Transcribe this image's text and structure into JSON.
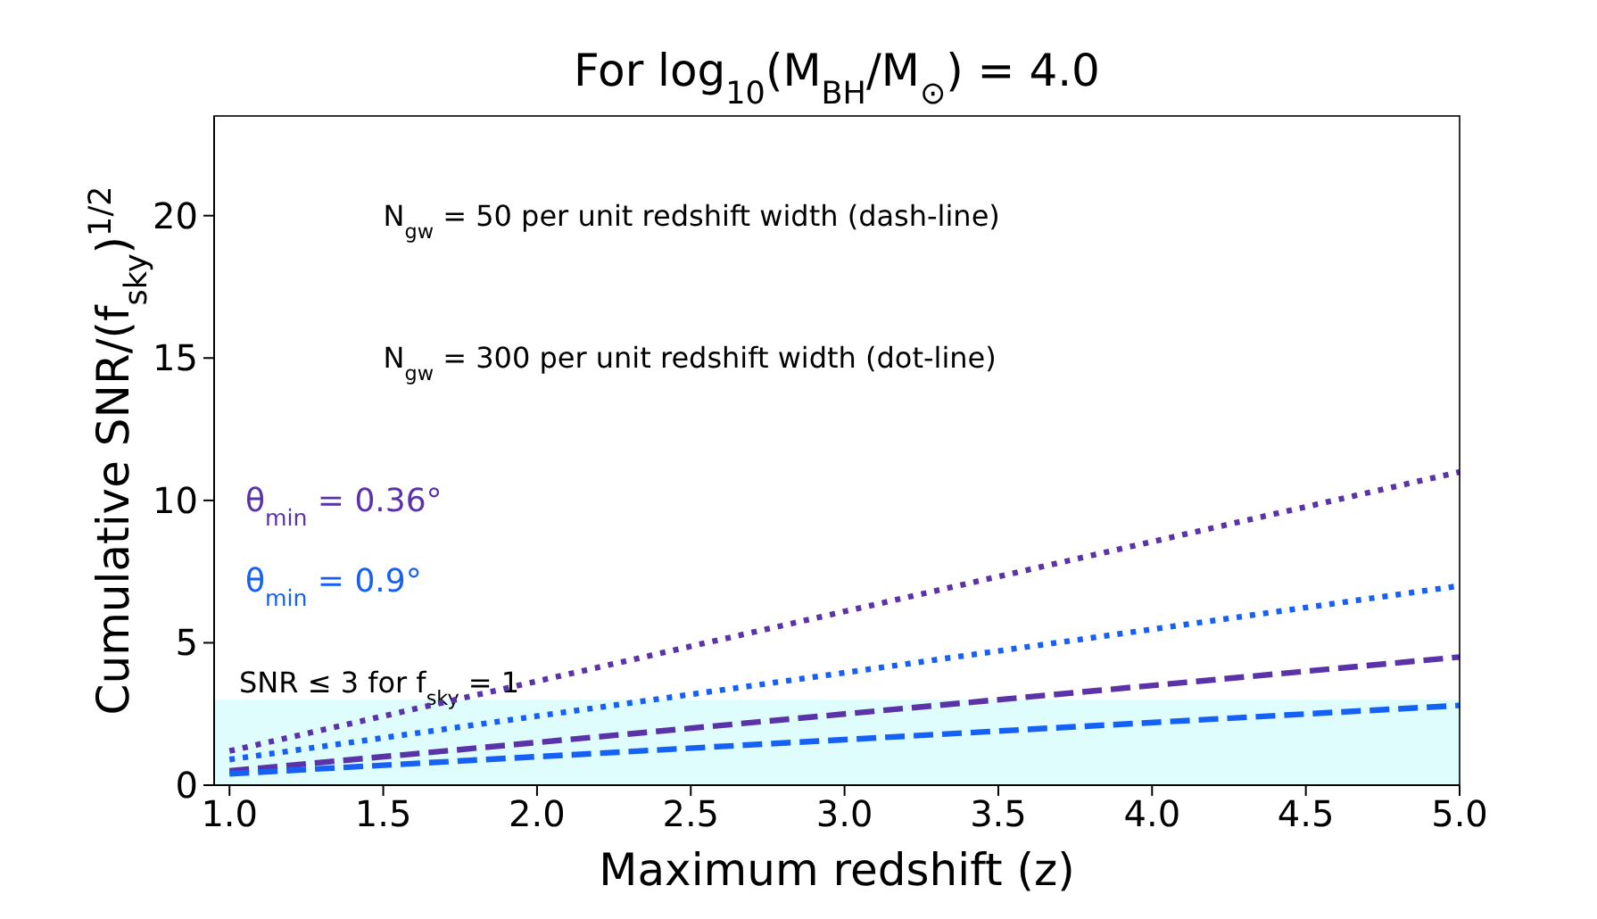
{
  "chart_data": {
    "type": "line",
    "title": "For log$_{10}$(M$_{BH}$/M$_{⊙}$) = 4.0",
    "xlabel": "Maximum redshift (z)",
    "ylabel": "Cumulative SNR/(f$_{sky}$)$^{1/2}$",
    "xlim": [
      0.95,
      5.0
    ],
    "ylim": [
      0,
      23.5
    ],
    "xticks": [
      {
        "value": 1.0,
        "label": "1.0"
      },
      {
        "value": 1.5,
        "label": "1.5"
      },
      {
        "value": 2.0,
        "label": "2.0"
      },
      {
        "value": 2.5,
        "label": "2.5"
      },
      {
        "value": 3.0,
        "label": "3.0"
      },
      {
        "value": 3.5,
        "label": "3.5"
      },
      {
        "value": 4.0,
        "label": "4.0"
      },
      {
        "value": 4.5,
        "label": "4.5"
      },
      {
        "value": 5.0,
        "label": "5.0"
      }
    ],
    "yticks": [
      0,
      5,
      10,
      15,
      20
    ],
    "x": [
      1.0,
      5.0
    ],
    "grid": false,
    "marker": "none",
    "series": [
      {
        "color": "#5a33a8",
        "values": [
          1.2,
          11.0
        ],
        "line_style": "dotted"
      },
      {
        "color": "#1560f5",
        "values": [
          0.9,
          7.0
        ],
        "line_style": "dotted"
      },
      {
        "color": "#5a33a8",
        "values": [
          0.5,
          4.5
        ],
        "line_style": "dashed"
      },
      {
        "color": "#1560f5",
        "values": [
          0.4,
          2.8
        ],
        "line_style": "dashed"
      }
    ],
    "bands": [
      {
        "axis": "y",
        "from": 0,
        "to": 3,
        "label": "SNR ≤ 3 for f$_{sky}$ = 1",
        "color": "#e0fdfd"
      }
    ],
    "annotations": [
      "N$_{gw}$ = 50 per unit redshift width (dash-line)",
      "N$_{gw}$ = 300 per unit redshift width (dot-line)",
      "θ$_{min}$ = 0.36°",
      "θ$_{min}$ = 0.9°"
    ]
  }
}
